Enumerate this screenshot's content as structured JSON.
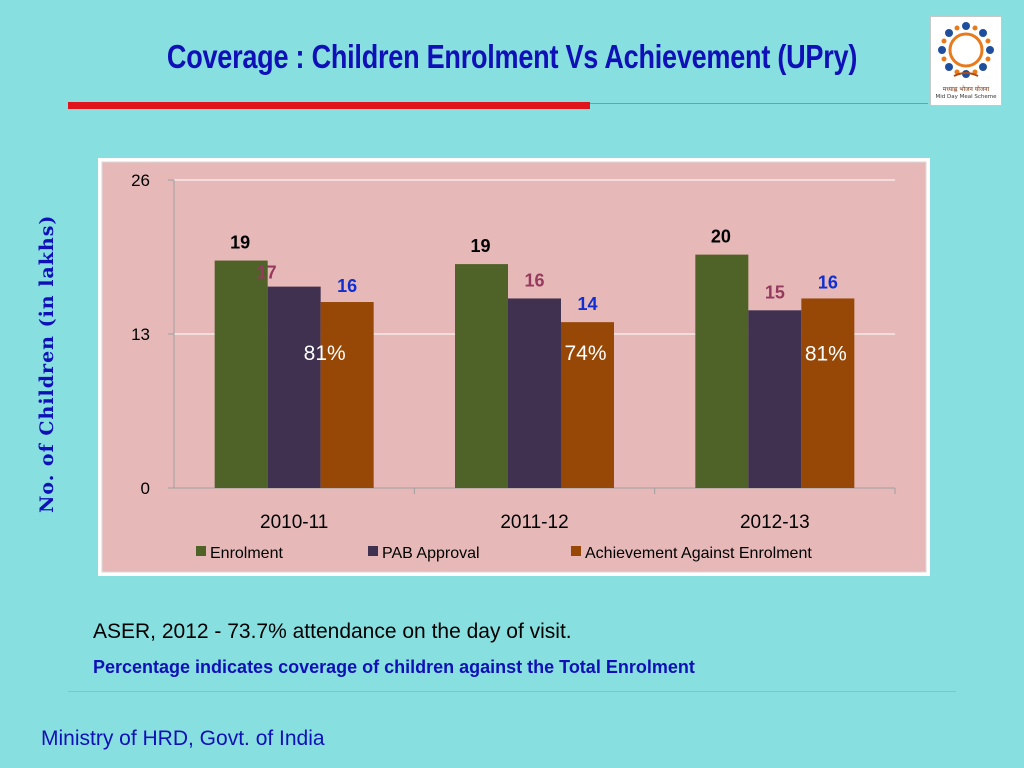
{
  "slide": {
    "title": "Coverage : Children Enrolment Vs Achievement (UPry)",
    "note_aser": "ASER, 2012 -  73.7% attendance on the day of visit.",
    "note_percentage": "Percentage indicates coverage of children against the Total Enrolment",
    "footer": "Ministry of HRD, Govt. of India"
  },
  "logo": {
    "text_hindi": "मध्याह्न भोजन योजना",
    "text_english": "Mid Day Meal Scheme"
  },
  "colors": {
    "background": "#87dfe0",
    "title": "#1010b8",
    "accent_rule": "#e0151b",
    "plot_area": "#e6b9b8"
  },
  "chart_data": {
    "type": "bar",
    "title": "",
    "ylabel": "No. of Children (in lakhs)",
    "xlabel": "",
    "ylim": [
      0,
      26
    ],
    "yticks": [
      "0",
      "13",
      "26"
    ],
    "ytick_values": [
      0,
      13,
      26
    ],
    "grid": true,
    "legend_position": "bottom",
    "categories": [
      "2010-11",
      "2011-12",
      "2012-13"
    ],
    "series": [
      {
        "name": "Enrolment",
        "color": "#4f6228",
        "label_color": "#000000",
        "values": [
          19.2,
          18.9,
          19.7
        ],
        "labels": [
          "19",
          "19",
          "20"
        ]
      },
      {
        "name": "PAB Approval",
        "color": "#403151",
        "label_color": "#953a5e",
        "values": [
          17.0,
          16.0,
          15.0
        ],
        "labels": [
          "17",
          "16",
          "15"
        ]
      },
      {
        "name": "Achievement Against Enrolment",
        "color": "#974806",
        "label_color": "#0f2fd0",
        "values": [
          15.7,
          14.0,
          16.0
        ],
        "labels": [
          "16",
          "14",
          "16"
        ]
      }
    ],
    "percentages": [
      "81%",
      "74%",
      "81%"
    ]
  }
}
